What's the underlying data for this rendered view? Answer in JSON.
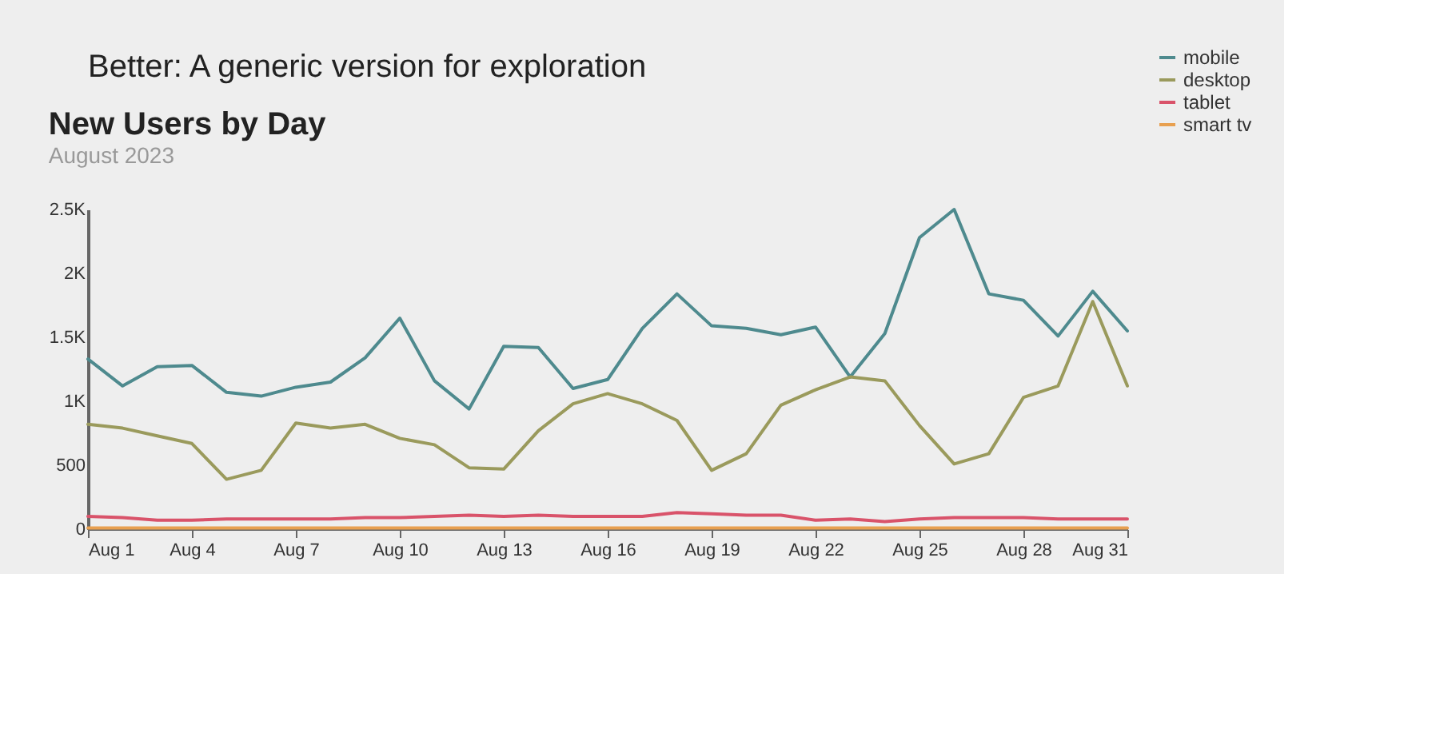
{
  "chart_data": {
    "type": "line",
    "title": "New Users by Day",
    "subtitle": "August 2023",
    "annotations": [
      "Better: A generic version for exploration"
    ],
    "x": [
      "2023-08-01",
      "2023-08-02",
      "2023-08-03",
      "2023-08-04",
      "2023-08-05",
      "2023-08-06",
      "2023-08-07",
      "2023-08-08",
      "2023-08-09",
      "2023-08-10",
      "2023-08-11",
      "2023-08-12",
      "2023-08-13",
      "2023-08-14",
      "2023-08-15",
      "2023-08-16",
      "2023-08-17",
      "2023-08-18",
      "2023-08-19",
      "2023-08-20",
      "2023-08-21",
      "2023-08-22",
      "2023-08-23",
      "2023-08-24",
      "2023-08-25",
      "2023-08-26",
      "2023-08-27",
      "2023-08-28",
      "2023-08-29",
      "2023-08-30",
      "2023-08-31"
    ],
    "series": [
      {
        "name": "mobile",
        "color": "#4e8a8e",
        "values": [
          1330,
          1120,
          1270,
          1280,
          1070,
          1040,
          1110,
          1150,
          1340,
          1650,
          1160,
          940,
          1430,
          1420,
          1100,
          1170,
          1570,
          1840,
          1590,
          1570,
          1520,
          1580,
          1190,
          1530,
          2280,
          2500,
          1840,
          1790,
          1510,
          1860,
          1550
        ]
      },
      {
        "name": "desktop",
        "color": "#9a9a5c",
        "values": [
          820,
          790,
          730,
          670,
          390,
          460,
          830,
          790,
          820,
          710,
          660,
          480,
          470,
          770,
          980,
          1060,
          980,
          850,
          460,
          590,
          970,
          1090,
          1190,
          1160,
          810,
          510,
          590,
          1030,
          1120,
          1780,
          1120
        ]
      },
      {
        "name": "tablet",
        "color": "#d9536a",
        "values": [
          100,
          90,
          70,
          70,
          80,
          80,
          80,
          80,
          90,
          90,
          100,
          110,
          100,
          110,
          100,
          100,
          100,
          130,
          120,
          110,
          110,
          70,
          80,
          60,
          80,
          90,
          90,
          90,
          80,
          80,
          80
        ]
      },
      {
        "name": "smart tv",
        "color": "#e8a050",
        "values": [
          10,
          10,
          10,
          10,
          10,
          10,
          10,
          10,
          10,
          10,
          10,
          10,
          10,
          10,
          10,
          10,
          10,
          10,
          10,
          10,
          10,
          10,
          10,
          10,
          10,
          10,
          10,
          10,
          10,
          10,
          10
        ]
      }
    ],
    "xlim": [
      "2023-08-01",
      "2023-08-31"
    ],
    "xticks": [
      {
        "value": "2023-08-01",
        "label": "Aug 1"
      },
      {
        "value": "2023-08-04",
        "label": "Aug 4"
      },
      {
        "value": "2023-08-07",
        "label": "Aug 7"
      },
      {
        "value": "2023-08-10",
        "label": "Aug 10"
      },
      {
        "value": "2023-08-13",
        "label": "Aug 13"
      },
      {
        "value": "2023-08-16",
        "label": "Aug 16"
      },
      {
        "value": "2023-08-19",
        "label": "Aug 19"
      },
      {
        "value": "2023-08-22",
        "label": "Aug 22"
      },
      {
        "value": "2023-08-25",
        "label": "Aug 25"
      },
      {
        "value": "2023-08-28",
        "label": "Aug 28"
      },
      {
        "value": "2023-08-31",
        "label": "Aug 31"
      }
    ],
    "ylim": [
      0,
      2500
    ],
    "yticks": [
      0,
      500,
      {
        "value": 1000,
        "label": "1K"
      },
      {
        "value": 1500,
        "label": "1.5K"
      },
      {
        "value": 2000,
        "label": "2K"
      },
      {
        "value": 2500,
        "label": "2.5K"
      }
    ],
    "grid": false,
    "legend": "right",
    "marker": "none",
    "line_style": "solid"
  }
}
